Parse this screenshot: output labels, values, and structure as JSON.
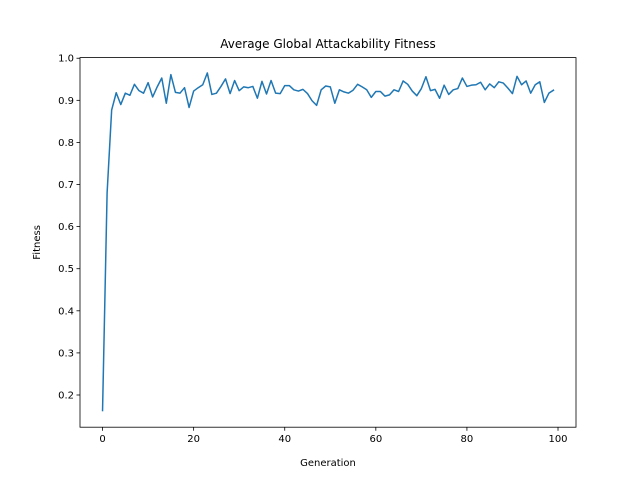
{
  "chart_data": {
    "type": "line",
    "title": "Average Global Attackability Fitness",
    "xlabel": "Generation",
    "ylabel": "Fitness",
    "xlim": [
      -4.95,
      103.95
    ],
    "ylim": [
      0.1235,
      1.0015
    ],
    "xticks": [
      0,
      20,
      40,
      60,
      80,
      100
    ],
    "yticks": [
      0.2,
      0.3,
      0.4,
      0.5,
      0.6,
      0.7,
      0.8,
      0.9,
      1.0
    ],
    "xtick_labels": [
      "0",
      "20",
      "40",
      "60",
      "80",
      "100"
    ],
    "ytick_labels": [
      "0.2",
      "0.3",
      "0.4",
      "0.5",
      "0.6",
      "0.7",
      "0.8",
      "0.9",
      "1.0"
    ],
    "grid": false,
    "legend": null,
    "series": [
      {
        "color": "#1f77b4",
        "x": [
          0,
          1,
          2,
          3,
          4,
          5,
          6,
          7,
          8,
          9,
          10,
          11,
          12,
          13,
          14,
          15,
          16,
          17,
          18,
          19,
          20,
          21,
          22,
          23,
          24,
          25,
          26,
          27,
          28,
          29,
          30,
          31,
          32,
          33,
          34,
          35,
          36,
          37,
          38,
          39,
          40,
          41,
          42,
          43,
          44,
          45,
          46,
          47,
          48,
          49,
          50,
          51,
          52,
          53,
          54,
          55,
          56,
          57,
          58,
          59,
          60,
          61,
          62,
          63,
          64,
          65,
          66,
          67,
          68,
          69,
          70,
          71,
          72,
          73,
          74,
          75,
          76,
          77,
          78,
          79,
          80,
          81,
          82,
          83,
          84,
          85,
          86,
          87,
          88,
          89,
          90,
          91,
          92,
          93,
          94,
          95,
          96,
          97,
          98,
          99
        ],
        "y": [
          0.163,
          0.68,
          0.877,
          0.918,
          0.89,
          0.917,
          0.912,
          0.938,
          0.923,
          0.917,
          0.942,
          0.908,
          0.932,
          0.953,
          0.893,
          0.961,
          0.919,
          0.917,
          0.93,
          0.883,
          0.922,
          0.93,
          0.937,
          0.965,
          0.914,
          0.917,
          0.933,
          0.951,
          0.916,
          0.947,
          0.923,
          0.932,
          0.93,
          0.933,
          0.905,
          0.945,
          0.915,
          0.947,
          0.917,
          0.916,
          0.935,
          0.935,
          0.925,
          0.922,
          0.926,
          0.916,
          0.899,
          0.888,
          0.925,
          0.934,
          0.932,
          0.893,
          0.925,
          0.92,
          0.917,
          0.924,
          0.938,
          0.932,
          0.925,
          0.907,
          0.921,
          0.921,
          0.91,
          0.913,
          0.925,
          0.921,
          0.946,
          0.938,
          0.922,
          0.911,
          0.928,
          0.956,
          0.923,
          0.926,
          0.905,
          0.936,
          0.914,
          0.925,
          0.928,
          0.953,
          0.933,
          0.936,
          0.937,
          0.943,
          0.925,
          0.939,
          0.93,
          0.944,
          0.941,
          0.929,
          0.916,
          0.957,
          0.937,
          0.946,
          0.917,
          0.937,
          0.944,
          0.895,
          0.917,
          0.924
        ]
      }
    ]
  }
}
